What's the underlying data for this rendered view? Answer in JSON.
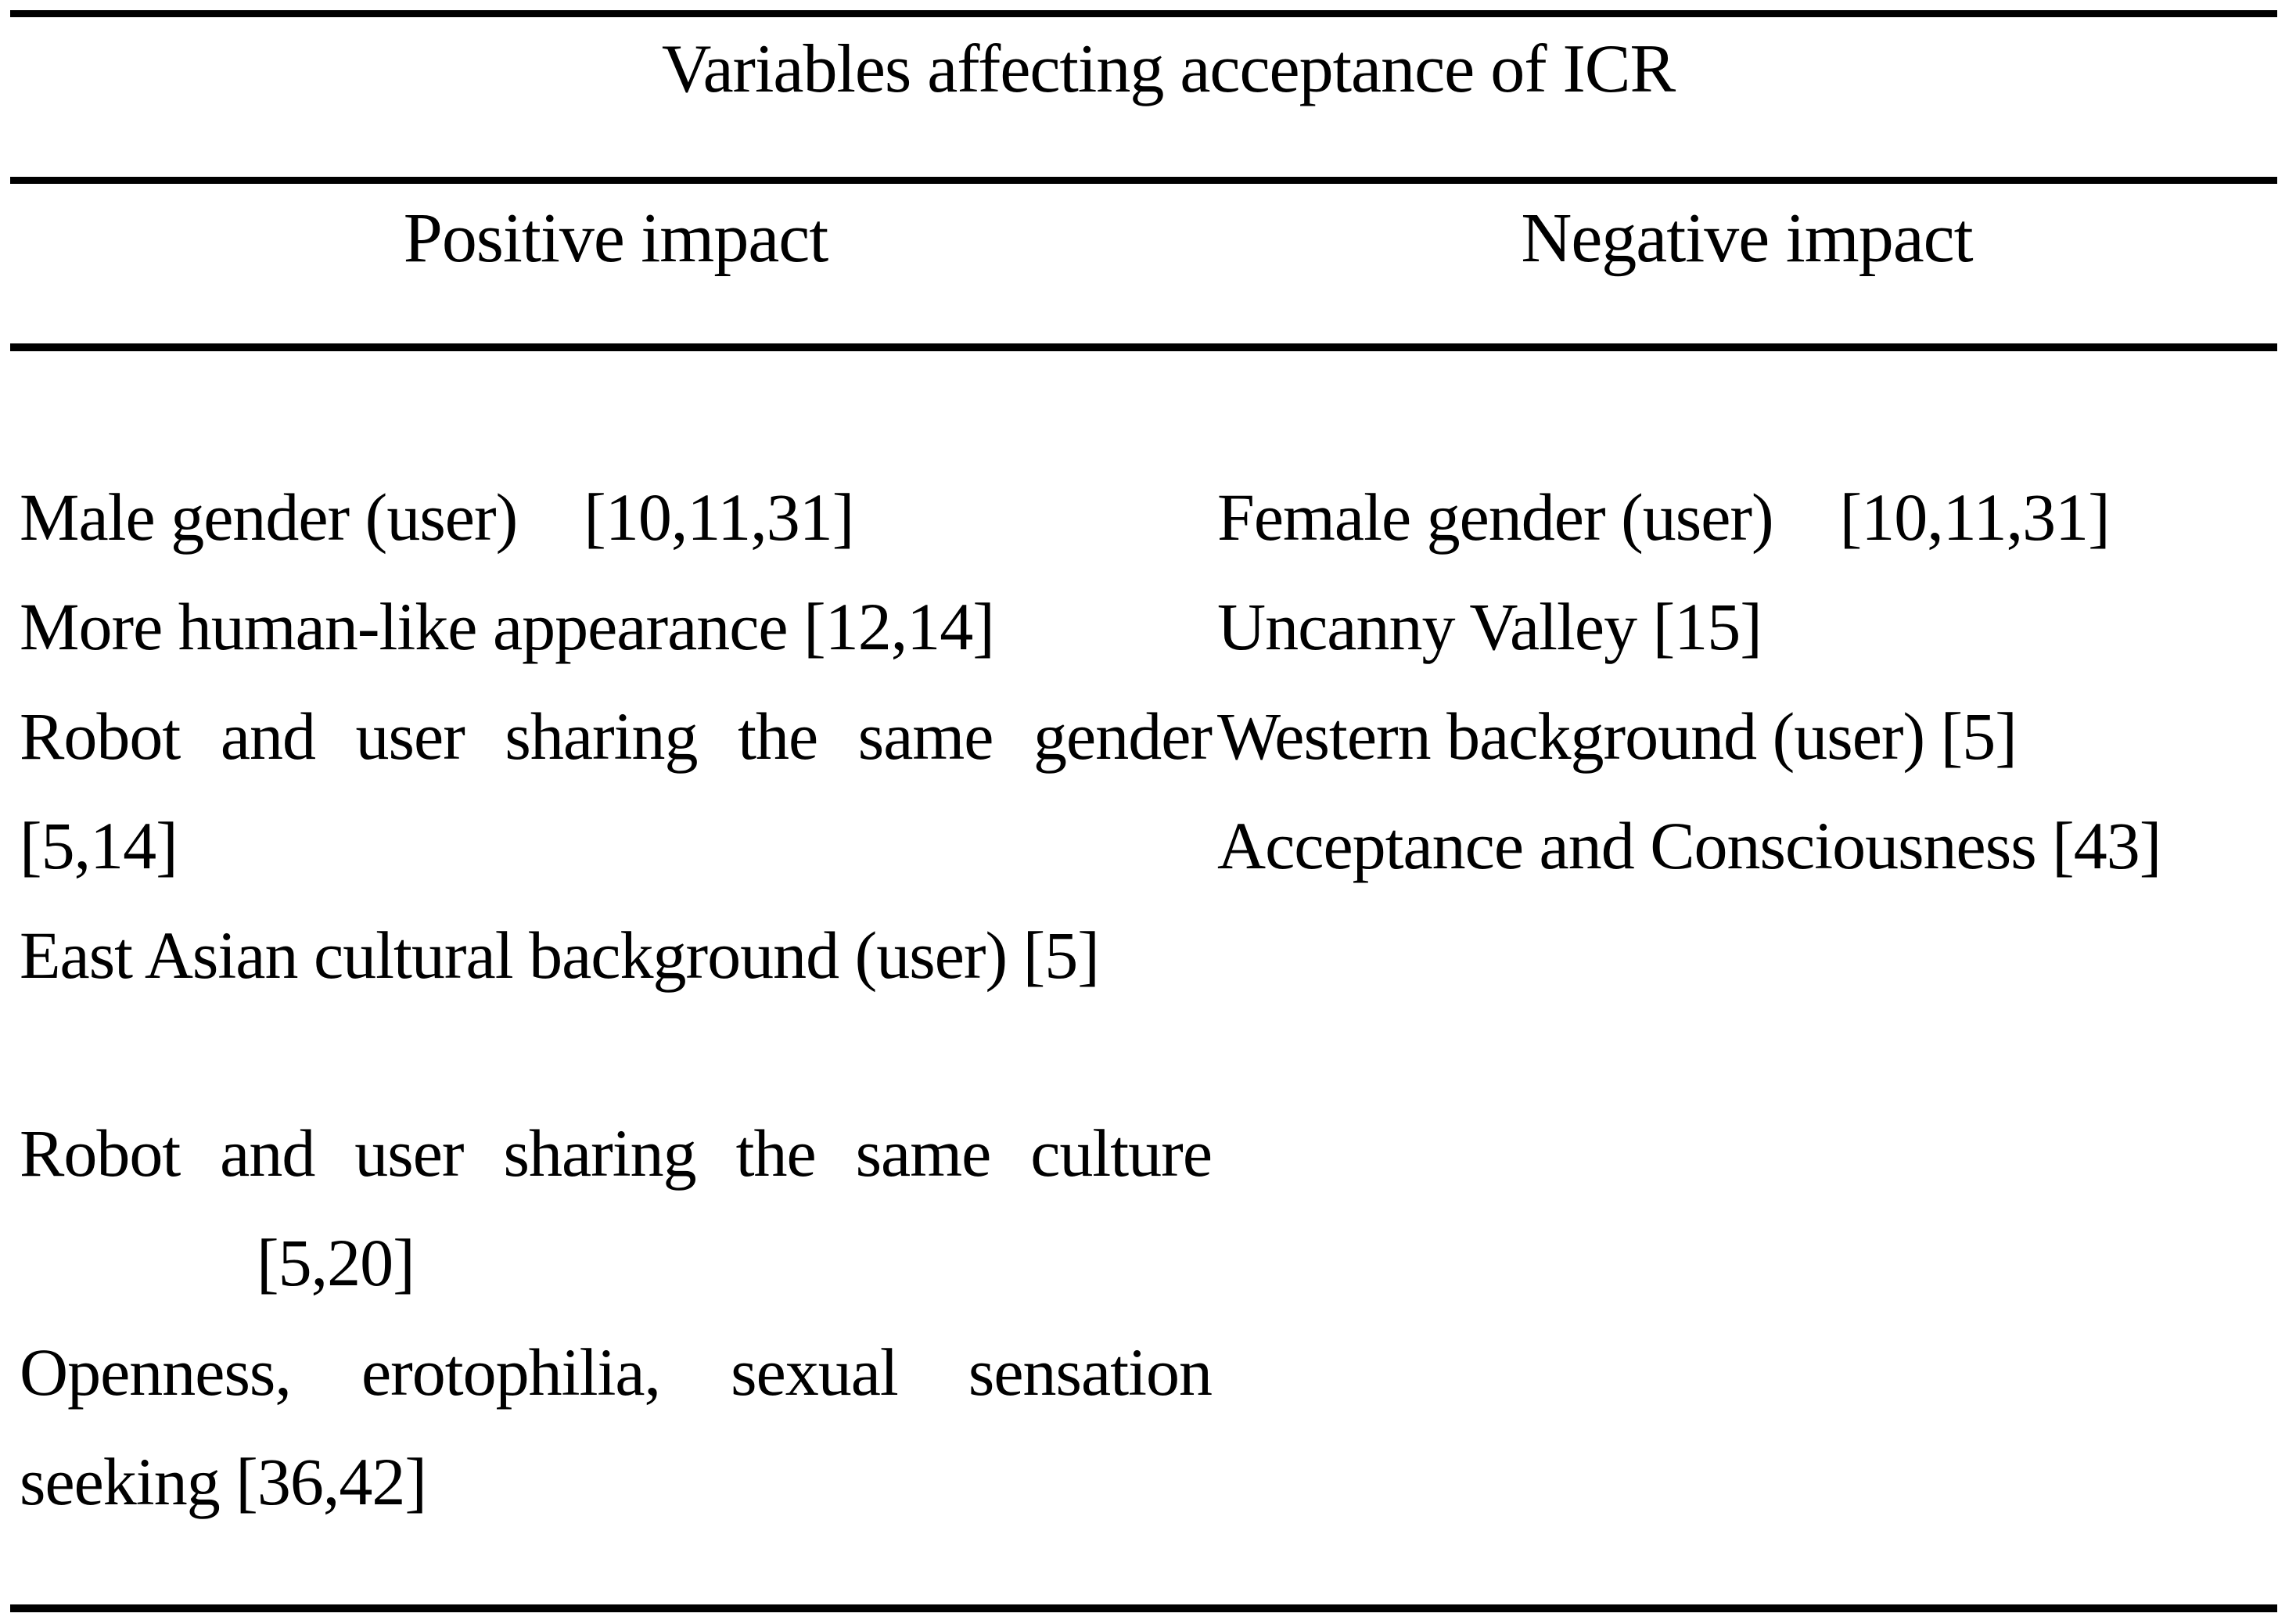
{
  "page": {
    "background": "#ffffff",
    "text_color": "#000000"
  },
  "table": {
    "title": "Variables affecting acceptance of ICR",
    "column_headers": {
      "positive": "Positive impact",
      "negative": "Negative impact"
    },
    "positive_rows": {
      "r1_label": "Male gender (user)",
      "r1_refs": "[10,11,31]",
      "r2": "More human-like appearance [12,14]",
      "r3": "Robot and user sharing the same gender",
      "r4": "[5,14]",
      "r5": "East Asian cultural background (user) [5]",
      "r6": "Robot and user sharing the same culture",
      "r7": "[5,20]",
      "r8": "Openness, erotophilia, sexual sensation",
      "r9": "seeking [36,42]"
    },
    "negative_rows": {
      "r1_label": "Female gender (user)",
      "r1_refs": "[10,11,31]",
      "r2": "Uncanny Valley [15]",
      "r3": "Western background (user) [5]",
      "r4": "Acceptance and Consciousness [43]"
    }
  }
}
